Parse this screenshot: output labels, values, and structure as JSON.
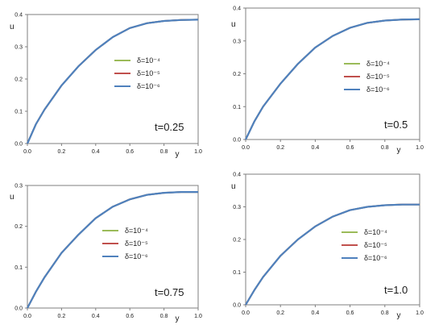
{
  "chart_data": [
    {
      "type": "line",
      "xlabel": "y",
      "ylabel": "u",
      "xlim": [
        0,
        1.0
      ],
      "ylim": [
        0,
        0.4
      ],
      "xticks": [
        "0.0",
        "0.2",
        "0.4",
        "0.6",
        "0.8",
        "1.0"
      ],
      "yticks": [
        "0.0",
        "0.1",
        "0.2",
        "0.3",
        "0.4"
      ],
      "annotation": "t=0.25",
      "series": [
        {
          "name": "δ=10⁻⁴",
          "color": "#9bbb59",
          "x": [
            0,
            0.05,
            0.1,
            0.2,
            0.3,
            0.4,
            0.5,
            0.6,
            0.7,
            0.8,
            0.9,
            1.0
          ],
          "y": [
            0,
            0.06,
            0.105,
            0.18,
            0.24,
            0.29,
            0.33,
            0.358,
            0.373,
            0.38,
            0.383,
            0.384
          ]
        },
        {
          "name": "δ=10⁻⁵",
          "color": "#c0504d",
          "x": [
            0,
            0.05,
            0.1,
            0.2,
            0.3,
            0.4,
            0.5,
            0.6,
            0.7,
            0.8,
            0.9,
            1.0
          ],
          "y": [
            0,
            0.06,
            0.105,
            0.18,
            0.24,
            0.29,
            0.33,
            0.358,
            0.373,
            0.38,
            0.383,
            0.384
          ]
        },
        {
          "name": "δ=10⁻⁶",
          "color": "#4f81bd",
          "x": [
            0,
            0.05,
            0.1,
            0.2,
            0.3,
            0.4,
            0.5,
            0.6,
            0.7,
            0.8,
            0.9,
            1.0
          ],
          "y": [
            0,
            0.06,
            0.105,
            0.18,
            0.24,
            0.29,
            0.33,
            0.358,
            0.373,
            0.38,
            0.383,
            0.384
          ]
        }
      ]
    },
    {
      "type": "line",
      "xlabel": "y",
      "ylabel": "u",
      "xlim": [
        0,
        1.0
      ],
      "ylim": [
        0,
        0.4
      ],
      "xticks": [
        "0.0",
        "0.2",
        "0.4",
        "0.6",
        "0.8",
        "1.0"
      ],
      "yticks": [
        "0.0",
        "0.1",
        "0.2",
        "0.3",
        "0.4"
      ],
      "annotation": "t=0.5",
      "series": [
        {
          "name": "δ=10⁻⁴",
          "color": "#9bbb59",
          "x": [
            0,
            0.05,
            0.1,
            0.2,
            0.3,
            0.4,
            0.5,
            0.6,
            0.7,
            0.8,
            0.9,
            1.0
          ],
          "y": [
            0,
            0.055,
            0.1,
            0.17,
            0.23,
            0.28,
            0.315,
            0.34,
            0.355,
            0.362,
            0.365,
            0.366
          ]
        },
        {
          "name": "δ=10⁻⁵",
          "color": "#c0504d",
          "x": [
            0,
            0.05,
            0.1,
            0.2,
            0.3,
            0.4,
            0.5,
            0.6,
            0.7,
            0.8,
            0.9,
            1.0
          ],
          "y": [
            0,
            0.055,
            0.1,
            0.17,
            0.23,
            0.28,
            0.315,
            0.34,
            0.355,
            0.362,
            0.365,
            0.366
          ]
        },
        {
          "name": "δ=10⁻⁶",
          "color": "#4f81bd",
          "x": [
            0,
            0.05,
            0.1,
            0.2,
            0.3,
            0.4,
            0.5,
            0.6,
            0.7,
            0.8,
            0.9,
            1.0
          ],
          "y": [
            0,
            0.055,
            0.1,
            0.17,
            0.23,
            0.28,
            0.315,
            0.34,
            0.355,
            0.362,
            0.365,
            0.366
          ]
        }
      ]
    },
    {
      "type": "line",
      "xlabel": "y",
      "ylabel": "u",
      "xlim": [
        0,
        1.0
      ],
      "ylim": [
        0,
        0.3
      ],
      "xticks": [
        "0.0",
        "0.2",
        "0.4",
        "0.6",
        "0.8",
        "1.0"
      ],
      "yticks": [
        "0.0",
        "0.1",
        "0.2",
        "0.3"
      ],
      "annotation": "t=0.75",
      "series": [
        {
          "name": "δ=10⁻⁴",
          "color": "#9bbb59",
          "x": [
            0,
            0.05,
            0.1,
            0.2,
            0.3,
            0.4,
            0.5,
            0.6,
            0.7,
            0.8,
            0.9,
            1.0
          ],
          "y": [
            0,
            0.04,
            0.075,
            0.135,
            0.18,
            0.22,
            0.248,
            0.266,
            0.277,
            0.282,
            0.284,
            0.284
          ]
        },
        {
          "name": "δ=10⁻⁵",
          "color": "#c0504d",
          "x": [
            0,
            0.05,
            0.1,
            0.2,
            0.3,
            0.4,
            0.5,
            0.6,
            0.7,
            0.8,
            0.9,
            1.0
          ],
          "y": [
            0,
            0.04,
            0.075,
            0.135,
            0.18,
            0.22,
            0.248,
            0.266,
            0.277,
            0.282,
            0.284,
            0.284
          ]
        },
        {
          "name": "δ=10⁻⁶",
          "color": "#4f81bd",
          "x": [
            0,
            0.05,
            0.1,
            0.2,
            0.3,
            0.4,
            0.5,
            0.6,
            0.7,
            0.8,
            0.9,
            1.0
          ],
          "y": [
            0,
            0.04,
            0.075,
            0.135,
            0.18,
            0.22,
            0.248,
            0.266,
            0.277,
            0.282,
            0.284,
            0.284
          ]
        }
      ]
    },
    {
      "type": "line",
      "xlabel": "y",
      "ylabel": "u",
      "xlim": [
        0,
        1.0
      ],
      "ylim": [
        0,
        0.4
      ],
      "xticks": [
        "0.0",
        "0.2",
        "0.4",
        "0.6",
        "0.8",
        "1.0"
      ],
      "yticks": [
        "0.0",
        "0.1",
        "0.2",
        "0.3",
        "0.4"
      ],
      "annotation": "t=1.0",
      "series": [
        {
          "name": "δ=10⁻⁴",
          "color": "#9bbb59",
          "x": [
            0,
            0.05,
            0.1,
            0.2,
            0.3,
            0.4,
            0.5,
            0.6,
            0.7,
            0.8,
            0.9,
            1.0
          ],
          "y": [
            0,
            0.045,
            0.085,
            0.15,
            0.2,
            0.24,
            0.27,
            0.29,
            0.3,
            0.305,
            0.307,
            0.307
          ]
        },
        {
          "name": "δ=10⁻⁵",
          "color": "#c0504d",
          "x": [
            0,
            0.05,
            0.1,
            0.2,
            0.3,
            0.4,
            0.5,
            0.6,
            0.7,
            0.8,
            0.9,
            1.0
          ],
          "y": [
            0,
            0.045,
            0.085,
            0.15,
            0.2,
            0.24,
            0.27,
            0.29,
            0.3,
            0.305,
            0.307,
            0.307
          ]
        },
        {
          "name": "δ=10⁻⁶",
          "color": "#4f81bd",
          "x": [
            0,
            0.05,
            0.1,
            0.2,
            0.3,
            0.4,
            0.5,
            0.6,
            0.7,
            0.8,
            0.9,
            1.0
          ],
          "y": [
            0,
            0.045,
            0.085,
            0.15,
            0.2,
            0.24,
            0.27,
            0.29,
            0.3,
            0.305,
            0.307,
            0.307
          ]
        }
      ]
    }
  ]
}
